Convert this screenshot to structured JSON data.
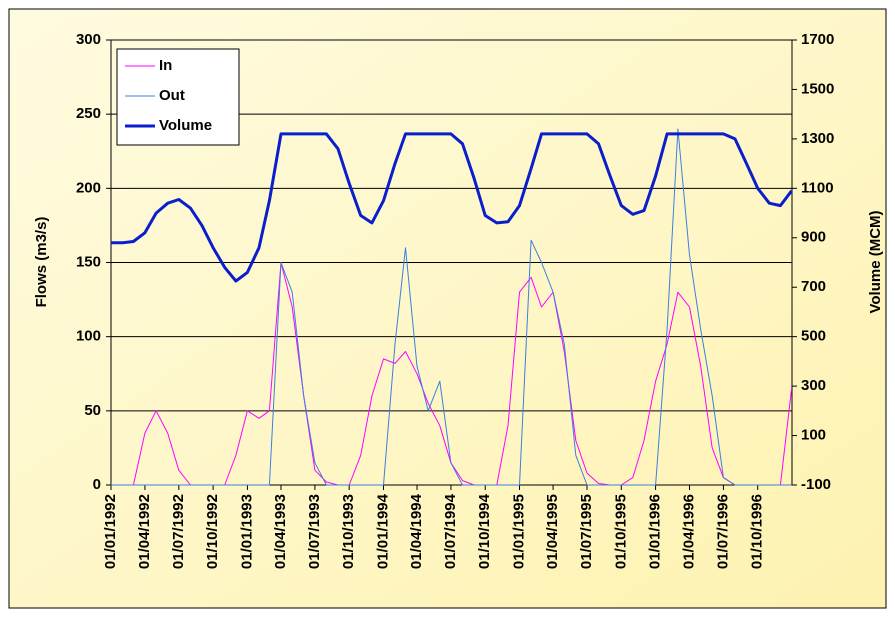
{
  "chart_data": {
    "type": "line",
    "y_label": "Flows (m3/s)",
    "y2_label": "Volume (MCM)",
    "x": [
      "1992-01-01",
      "1992-02-01",
      "1992-03-01",
      "1992-04-01",
      "1992-05-01",
      "1992-06-01",
      "1992-07-01",
      "1992-08-01",
      "1992-09-01",
      "1992-10-01",
      "1992-11-01",
      "1992-12-01",
      "1993-01-01",
      "1993-02-01",
      "1993-03-01",
      "1993-04-01",
      "1993-05-01",
      "1993-06-01",
      "1993-07-01",
      "1993-08-01",
      "1993-09-01",
      "1993-10-01",
      "1993-11-01",
      "1993-12-01",
      "1994-01-01",
      "1994-02-01",
      "1994-03-01",
      "1994-04-01",
      "1994-05-01",
      "1994-06-01",
      "1994-07-01",
      "1994-08-01",
      "1994-09-01",
      "1994-10-01",
      "1994-11-01",
      "1994-12-01",
      "1995-01-01",
      "1995-02-01",
      "1995-03-01",
      "1995-04-01",
      "1995-05-01",
      "1995-06-01",
      "1995-07-01",
      "1995-08-01",
      "1995-09-01",
      "1995-10-01",
      "1995-11-01",
      "1995-12-01",
      "1996-01-01",
      "1996-02-01",
      "1996-03-01",
      "1996-04-01",
      "1996-05-01",
      "1996-06-01",
      "1996-07-01",
      "1996-08-01",
      "1996-09-01",
      "1996-10-01",
      "1996-11-01",
      "1996-12-01",
      "1996-12-31"
    ],
    "xlim": [
      "1992-01-01",
      "1997-01-01"
    ],
    "xticks": [
      {
        "value": "1992-01-01",
        "label": "01/01/1992"
      },
      {
        "value": "1992-04-01",
        "label": "01/04/1992"
      },
      {
        "value": "1992-07-01",
        "label": "01/07/1992"
      },
      {
        "value": "1992-10-01",
        "label": "01/10/1992"
      },
      {
        "value": "1993-01-01",
        "label": "01/01/1993"
      },
      {
        "value": "1993-04-01",
        "label": "01/04/1993"
      },
      {
        "value": "1993-07-01",
        "label": "01/07/1993"
      },
      {
        "value": "1993-10-01",
        "label": "01/10/1993"
      },
      {
        "value": "1994-01-01",
        "label": "01/01/1994"
      },
      {
        "value": "1994-04-01",
        "label": "01/04/1994"
      },
      {
        "value": "1994-07-01",
        "label": "01/07/1994"
      },
      {
        "value": "1994-10-01",
        "label": "01/10/1994"
      },
      {
        "value": "1995-01-01",
        "label": "01/01/1995"
      },
      {
        "value": "1995-04-01",
        "label": "01/04/1995"
      },
      {
        "value": "1995-07-01",
        "label": "01/07/1995"
      },
      {
        "value": "1995-10-01",
        "label": "01/10/1995"
      },
      {
        "value": "1996-01-01",
        "label": "01/01/1996"
      },
      {
        "value": "1996-04-01",
        "label": "01/04/1996"
      },
      {
        "value": "1996-07-01",
        "label": "01/07/1996"
      },
      {
        "value": "1996-10-01",
        "label": "01/10/1996"
      }
    ],
    "ylim": [
      0,
      300
    ],
    "yticks": [
      0,
      50,
      100,
      150,
      200,
      250,
      300
    ],
    "y2lim": [
      -100,
      1700
    ],
    "y2ticks": [
      -100,
      100,
      300,
      500,
      700,
      900,
      1100,
      1300,
      1500,
      1700
    ],
    "grid": true,
    "legend": "top-left",
    "series": [
      {
        "name": "In",
        "color": "#ff00ff",
        "width": 1,
        "values": [
          0,
          0,
          0,
          35,
          50,
          35,
          10,
          0,
          0,
          0,
          0,
          20,
          50,
          45,
          50,
          150,
          120,
          60,
          10,
          2,
          0,
          0,
          20,
          60,
          85,
          82,
          90,
          75,
          55,
          40,
          15,
          3,
          0,
          0,
          0,
          40,
          130,
          140,
          120,
          130,
          90,
          30,
          8,
          1,
          0,
          0,
          5,
          30,
          70,
          95,
          130,
          120,
          80,
          25,
          5,
          0,
          0,
          0,
          0,
          0,
          65
        ]
      },
      {
        "name": "Out",
        "color": "#3a7fe0",
        "width": 1,
        "values": [
          0,
          0,
          0,
          0,
          0,
          0,
          0,
          0,
          0,
          0,
          0,
          0,
          0,
          0,
          0,
          150,
          130,
          60,
          15,
          0,
          0,
          0,
          0,
          0,
          0,
          95,
          160,
          80,
          50,
          70,
          15,
          0,
          0,
          0,
          0,
          0,
          0,
          165,
          150,
          130,
          95,
          20,
          0,
          0,
          0,
          0,
          0,
          0,
          0,
          105,
          240,
          155,
          105,
          60,
          5,
          0,
          0,
          0,
          0,
          0,
          0
        ]
      },
      {
        "name": "Volume",
        "color": "#0a1ecc",
        "width": 3,
        "axis": "y2",
        "values": [
          880,
          880,
          885,
          920,
          1000,
          1040,
          1055,
          1020,
          950,
          860,
          780,
          725,
          760,
          860,
          1050,
          1320,
          1320,
          1320,
          1320,
          1320,
          1260,
          1120,
          990,
          960,
          1050,
          1200,
          1320,
          1320,
          1320,
          1320,
          1320,
          1280,
          1140,
          990,
          960,
          965,
          1030,
          1180,
          1320,
          1320,
          1320,
          1320,
          1320,
          1280,
          1150,
          1030,
          995,
          1010,
          1150,
          1320,
          1320,
          1320,
          1320,
          1320,
          1320,
          1300,
          1200,
          1100,
          1040,
          1030,
          1090
        ]
      }
    ]
  }
}
